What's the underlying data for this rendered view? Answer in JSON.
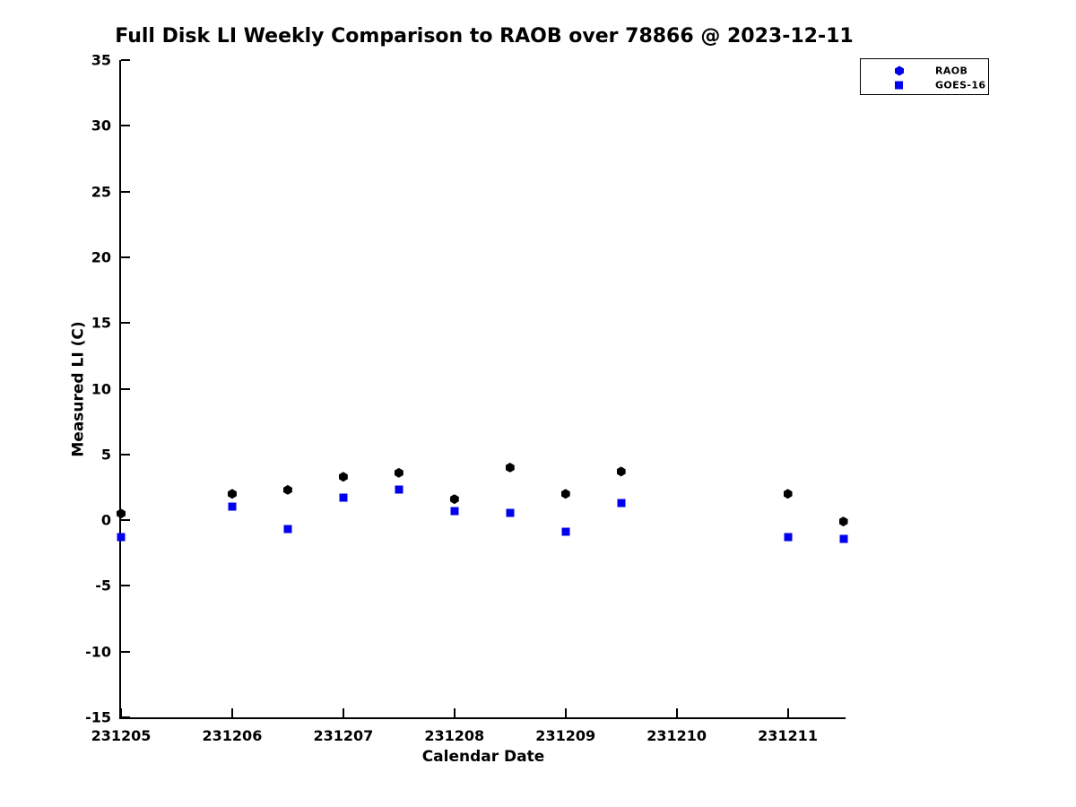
{
  "colors": {
    "raob_point": "#000000",
    "goes16_point": "#0000ee",
    "legend_raob_marker": "#0000ee",
    "legend_goes16_marker": "#0000ee",
    "axis": "#000000",
    "background": "#ffffff"
  },
  "legend": {
    "items": [
      {
        "label": "RAOB",
        "marker": "hexagon-icon",
        "color": "#0000ee"
      },
      {
        "label": "GOES-16",
        "marker": "square-icon",
        "color": "#0000ee"
      }
    ]
  },
  "chart_data": {
    "type": "scatter",
    "title": "Full Disk LI Weekly Comparison to RAOB over 78866 @ 2023-12-11",
    "xlabel": "Calendar Date",
    "ylabel": "Measured LI (C)",
    "xlim": [
      231205,
      231211.52
    ],
    "ylim": [
      -15,
      35
    ],
    "grid": false,
    "legend_position": "top-right",
    "xticks": [
      231205,
      231206,
      231207,
      231208,
      231209,
      231210,
      231211
    ],
    "xtick_labels": [
      "231205",
      "231206",
      "231207",
      "231208",
      "231209",
      "231210",
      "231211"
    ],
    "yticks": [
      35,
      30,
      25,
      20,
      15,
      10,
      5,
      0,
      -5,
      -10,
      -15
    ],
    "ytick_labels": [
      "35",
      "30",
      "25",
      "20",
      "15",
      "10",
      "5",
      "0",
      "-5",
      "-10",
      "-15"
    ],
    "series": [
      {
        "name": "RAOB",
        "marker": "hexagon",
        "color": "#000000",
        "points": [
          [
            231205.0,
            0.5
          ],
          [
            231206.0,
            2.0
          ],
          [
            231206.5,
            2.3
          ],
          [
            231207.0,
            3.3
          ],
          [
            231207.5,
            3.6
          ],
          [
            231208.0,
            1.6
          ],
          [
            231208.5,
            4.0
          ],
          [
            231209.0,
            2.0
          ],
          [
            231209.5,
            3.7
          ],
          [
            231211.0,
            2.0
          ],
          [
            231211.5,
            -0.1
          ]
        ]
      },
      {
        "name": "GOES-16",
        "marker": "square",
        "color": "#0000ee",
        "points": [
          [
            231205.0,
            -1.3
          ],
          [
            231206.0,
            1.0
          ],
          [
            231206.5,
            -0.7
          ],
          [
            231207.0,
            1.7
          ],
          [
            231207.5,
            2.3
          ],
          [
            231208.0,
            0.7
          ],
          [
            231208.5,
            0.55
          ],
          [
            231209.0,
            -0.9
          ],
          [
            231209.5,
            1.3
          ],
          [
            231211.0,
            -1.3
          ],
          [
            231211.5,
            -1.45
          ]
        ]
      }
    ]
  }
}
